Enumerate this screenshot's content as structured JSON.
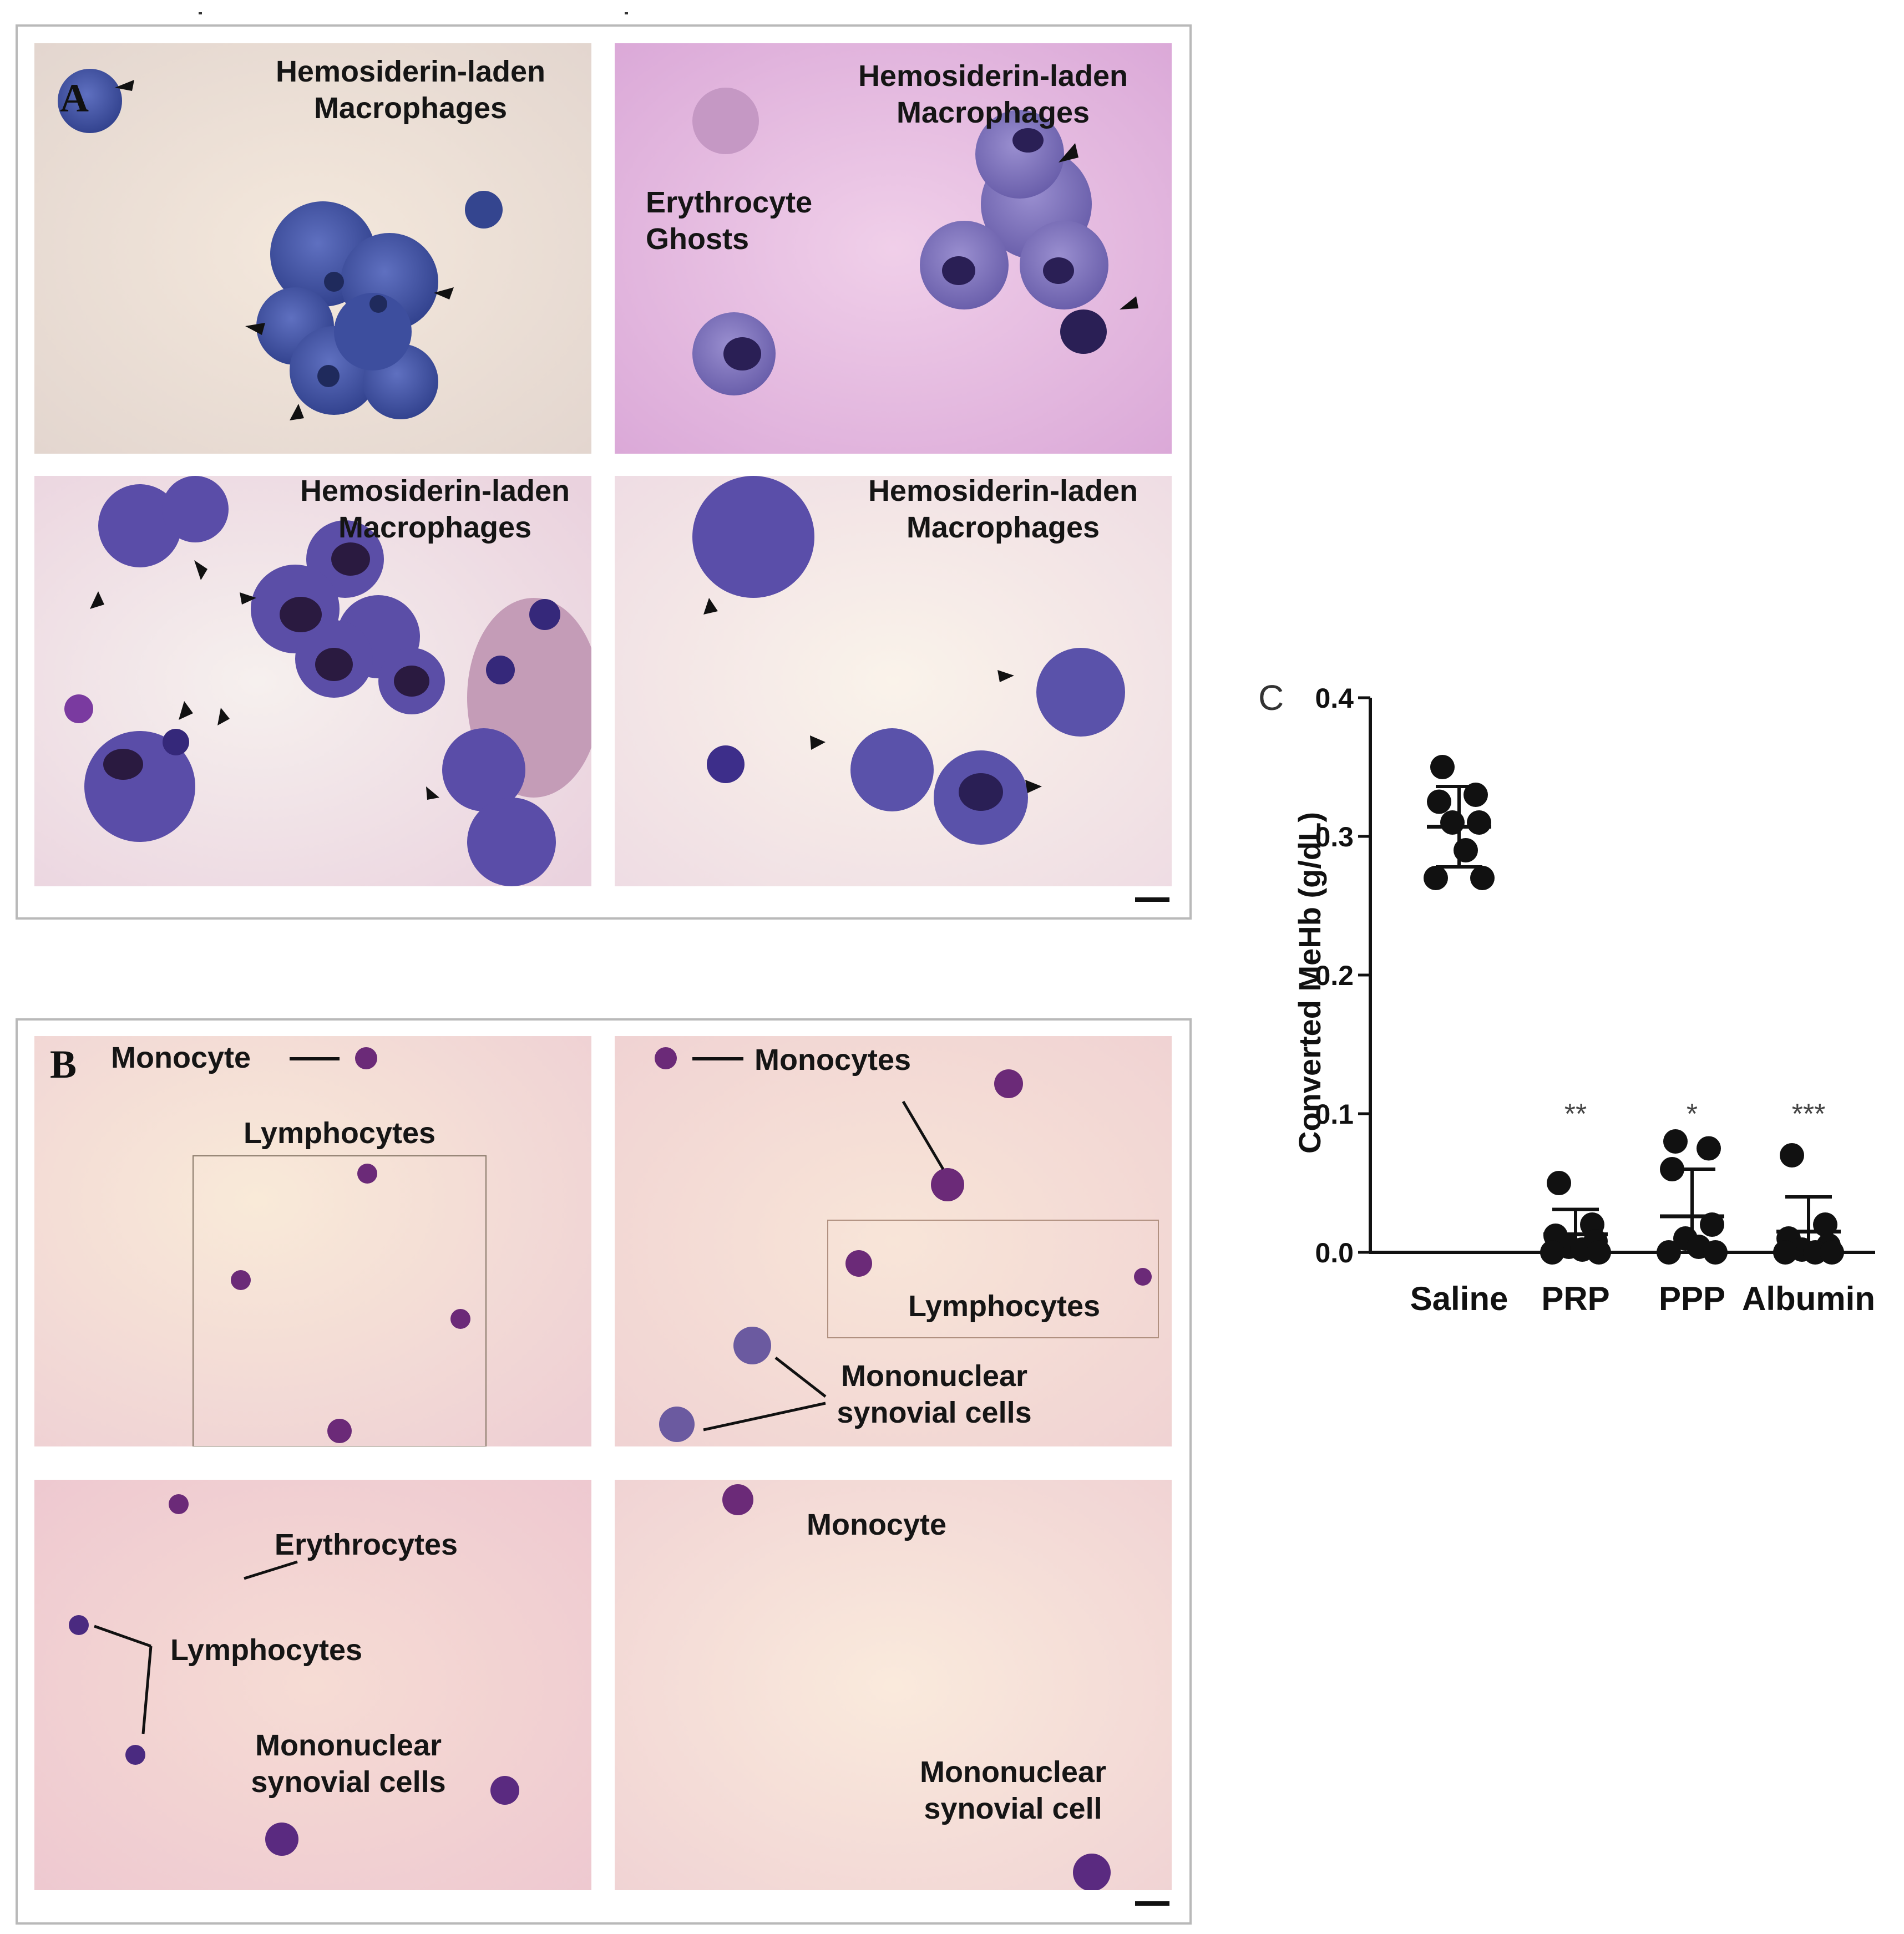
{
  "panel_a": {
    "letter": "A",
    "labels": {
      "tl_line1": "Hemosiderin-laden",
      "tl_line2": "Macrophages",
      "tr_line1": "Hemosiderin-laden",
      "tr_line2": "Macrophages",
      "tr_ghost1": "Erythrocyte",
      "tr_ghost2": "Ghosts",
      "bl_line1": "Hemosiderin-laden",
      "bl_line2": "Macrophages",
      "br_line1": "Hemosiderin-laden",
      "br_line2": "Macrophages"
    }
  },
  "panel_b": {
    "letter": "B",
    "labels": {
      "tl_monocyte": "Monocyte",
      "tl_lymph": "Lymphocytes",
      "tr_monocytes": "Monocytes",
      "tr_lymph": "Lymphocytes",
      "tr_mono1": "Mononuclear",
      "tr_mono2": "synovial cells",
      "bl_ery": "Erythrocytes",
      "bl_lymph": "Lymphocytes",
      "bl_mono1": "Mononuclear",
      "bl_mono2": "synovial cells",
      "br_monocyte": "Monocyte",
      "br_mono1": "Mononuclear",
      "br_mono2": "synovial cell"
    }
  },
  "panel_c": {
    "letter": "C"
  },
  "colors": {
    "bg_a_warm": "#efe2d8",
    "bg_a_pink": "#e8bfe4",
    "bg_b": "#f4dcd4",
    "cell_blue": "#4b5aa8",
    "cell_purple": "#5a3a8e",
    "nucleus": "#2a1f55",
    "chart_ink": "#111111"
  },
  "chart_data": {
    "type": "scatter",
    "title": "",
    "xlabel": "",
    "ylabel": "Converted MeHb (g/dL)",
    "ylim": [
      0,
      0.4
    ],
    "yticks": [
      "0.0",
      "0.1",
      "0.2",
      "0.3",
      "0.4"
    ],
    "categories": [
      "Saline",
      "PRP",
      "PPP",
      "Albumin"
    ],
    "significance": [
      "",
      "**",
      "*",
      "***"
    ],
    "series": [
      {
        "name": "Saline",
        "points": [
          0.35,
          0.33,
          0.325,
          0.31,
          0.31,
          0.29,
          0.27,
          0.27
        ],
        "mean": 0.307,
        "sd_upper": 0.336,
        "sd_lower": 0.278
      },
      {
        "name": "PRP",
        "points": [
          0.05,
          0.02,
          0.012,
          0.008,
          0.004,
          0.002,
          0.0,
          0.0
        ],
        "mean": 0.013,
        "sd_upper": 0.031,
        "sd_lower": 0.0
      },
      {
        "name": "PPP",
        "points": [
          0.08,
          0.075,
          0.06,
          0.02,
          0.01,
          0.004,
          0.0,
          0.0
        ],
        "mean": 0.026,
        "sd_upper": 0.06,
        "sd_lower": 0.0
      },
      {
        "name": "Albumin",
        "points": [
          0.07,
          0.02,
          0.01,
          0.005,
          0.002,
          0.0,
          0.0,
          0.0
        ],
        "mean": 0.015,
        "sd_upper": 0.04,
        "sd_lower": 0.0
      }
    ]
  }
}
